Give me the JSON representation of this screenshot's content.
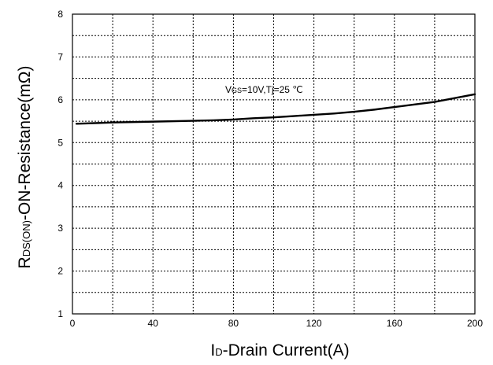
{
  "chart_data": {
    "type": "line",
    "title": "",
    "xlabel": {
      "main": "I",
      "sub": "D",
      "rest": "-Drain Current(A)"
    },
    "ylabel": {
      "main": "R",
      "sub": "DS(ON)",
      "rest": "-ON-Resistance(mΩ)"
    },
    "xlim": [
      0,
      200
    ],
    "ylim": [
      1,
      8
    ],
    "x_ticks": [
      "0",
      "40",
      "80",
      "120",
      "160",
      "200"
    ],
    "y_ticks": [
      "1",
      "2",
      "3",
      "4",
      "5",
      "6",
      "7",
      "8"
    ],
    "grid": true,
    "grid_style": "dotted",
    "annotation": {
      "main1": "V",
      "sub": "GS",
      "main2": "=10V,Tj=25 ℃"
    },
    "series": [
      {
        "x": [
          2,
          20,
          40,
          60,
          70,
          80,
          90,
          100,
          110,
          120,
          130,
          140,
          150,
          160,
          170,
          180,
          190,
          200
        ],
        "y": [
          5.44,
          5.47,
          5.49,
          5.51,
          5.52,
          5.54,
          5.57,
          5.59,
          5.62,
          5.65,
          5.68,
          5.72,
          5.77,
          5.83,
          5.89,
          5.95,
          6.04,
          6.13
        ]
      }
    ]
  }
}
